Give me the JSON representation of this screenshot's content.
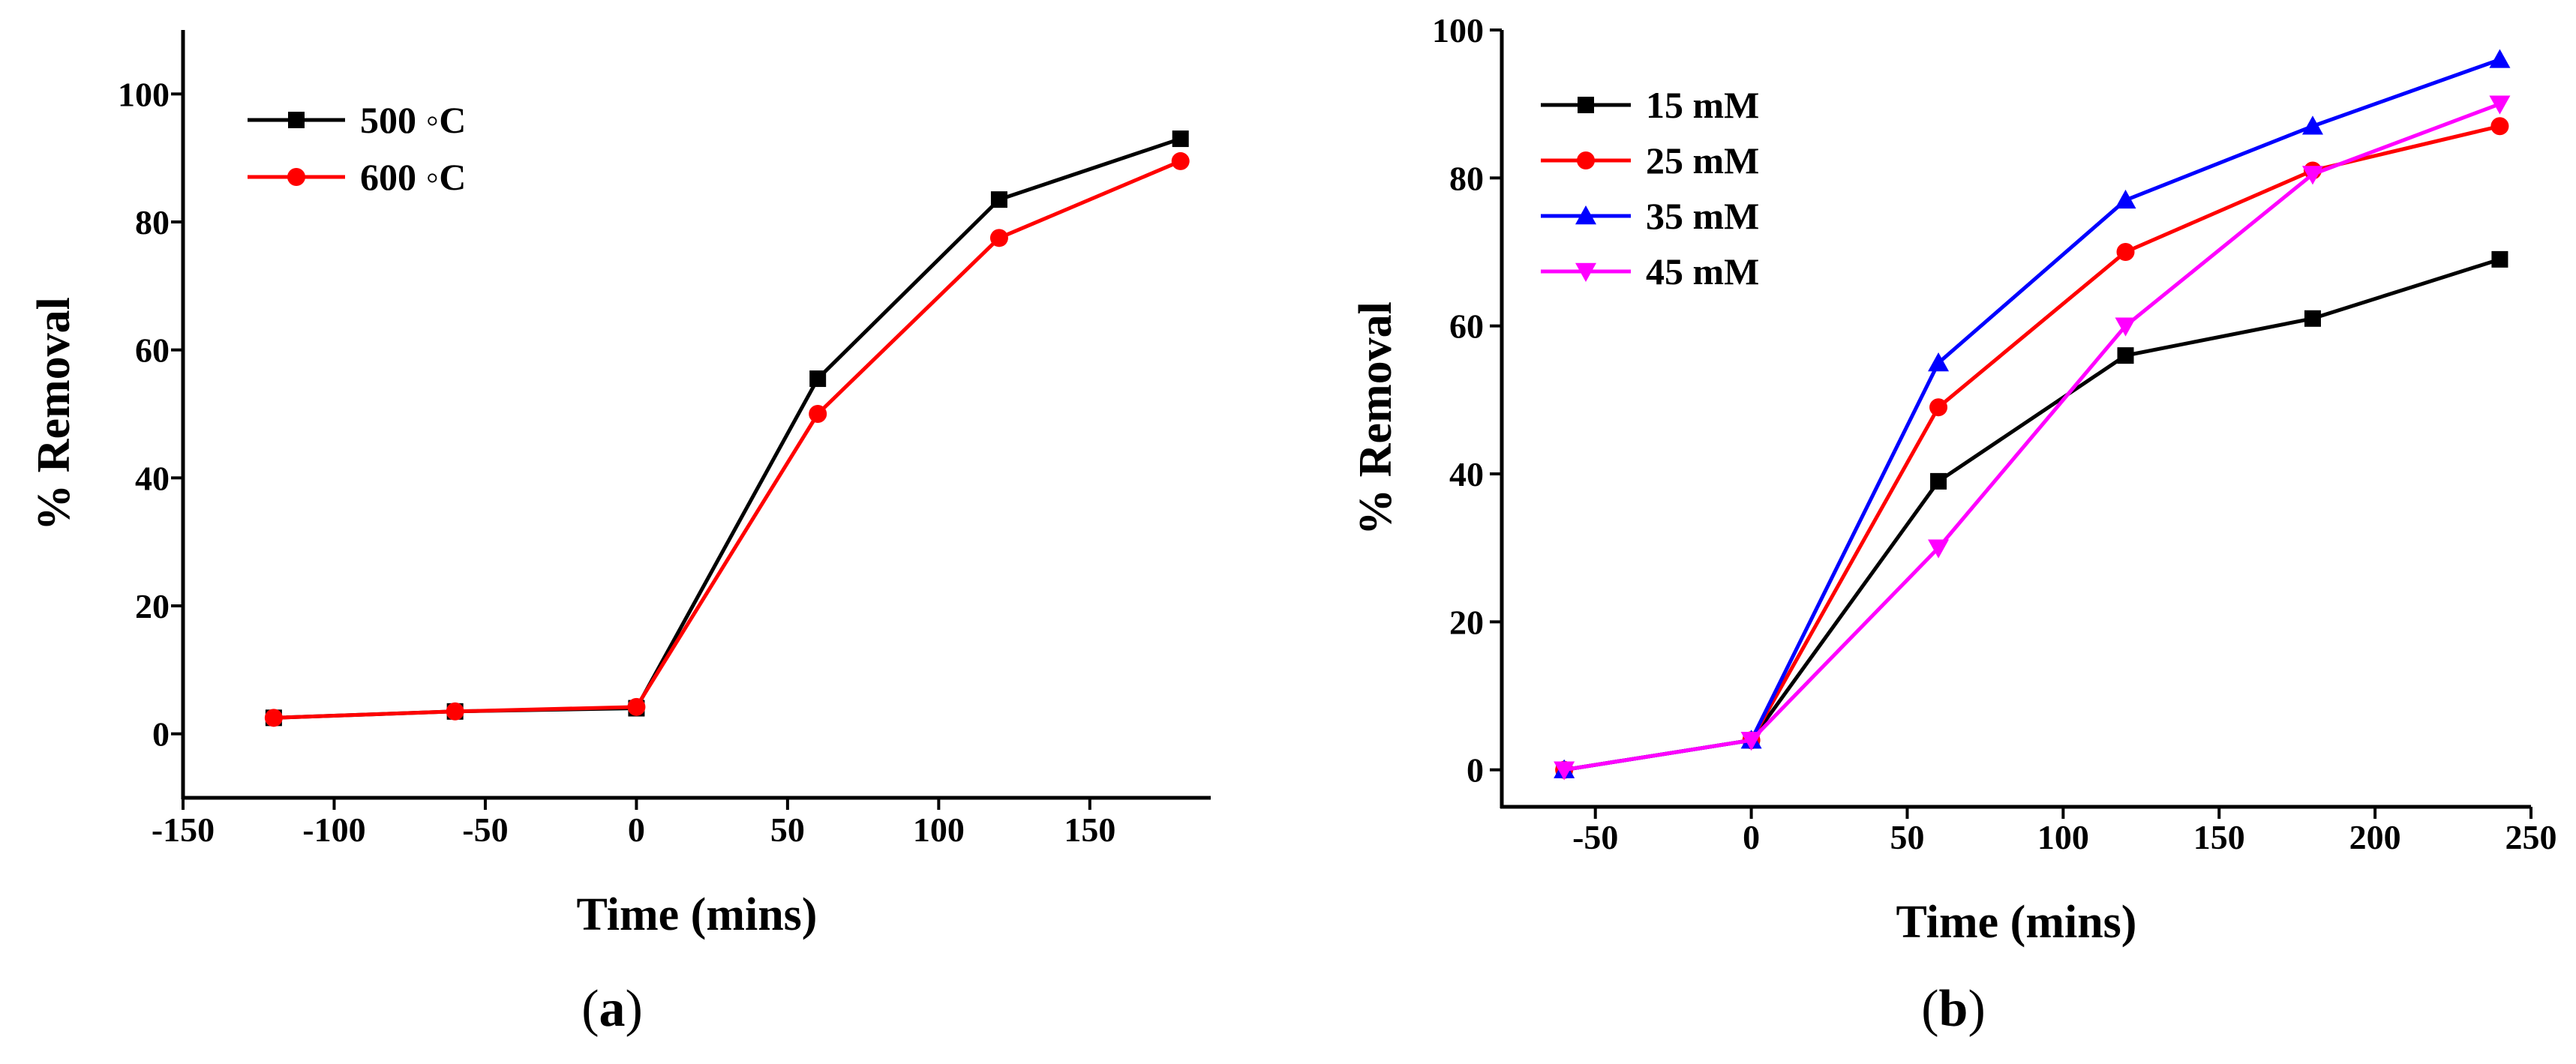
{
  "figure": {
    "panels": [
      {
        "label_open": "(",
        "label_letter": "a",
        "label_close": ")"
      },
      {
        "label_open": "(",
        "label_letter": "b",
        "label_close": ")"
      }
    ]
  },
  "chart_data": [
    {
      "type": "line",
      "panel": "a",
      "title": "",
      "xlabel": "Time (mins)",
      "ylabel": "% Removal",
      "xlim": [
        -150,
        190
      ],
      "ylim": [
        -10,
        110
      ],
      "xticks": [
        -150,
        -100,
        -50,
        0,
        50,
        100,
        150
      ],
      "yticks": [
        0,
        20,
        40,
        60,
        80,
        100
      ],
      "legend_position": "top-left",
      "series": [
        {
          "name": "500 ◦C",
          "color": "#000000",
          "marker": "square",
          "x": [
            -120,
            -60,
            0,
            60,
            120,
            180
          ],
          "y": [
            2.5,
            3.5,
            4.0,
            55.5,
            83.5,
            93.0
          ]
        },
        {
          "name": "600 ◦C",
          "color": "#ff0000",
          "marker": "circle",
          "x": [
            -120,
            -60,
            0,
            60,
            120,
            180
          ],
          "y": [
            2.5,
            3.5,
            4.2,
            50.0,
            77.5,
            89.5
          ]
        }
      ]
    },
    {
      "type": "line",
      "panel": "b",
      "title": "",
      "xlabel": "Time (mins)",
      "ylabel": "% Removal",
      "xlim": [
        -80,
        250
      ],
      "ylim": [
        -5,
        100
      ],
      "xticks": [
        -50,
        0,
        50,
        100,
        150,
        200,
        250
      ],
      "yticks": [
        0,
        20,
        40,
        60,
        80,
        100
      ],
      "legend_position": "top-left",
      "series": [
        {
          "name": "15 mM",
          "color": "#000000",
          "marker": "square",
          "x": [
            -60,
            0,
            60,
            120,
            180,
            240
          ],
          "y": [
            0,
            4,
            39,
            56,
            61,
            69
          ]
        },
        {
          "name": "25 mM",
          "color": "#ff0000",
          "marker": "circle",
          "x": [
            -60,
            0,
            60,
            120,
            180,
            240
          ],
          "y": [
            0,
            4,
            49,
            70,
            81,
            87
          ]
        },
        {
          "name": "35 mM",
          "color": "#0000ff",
          "marker": "triangle-up",
          "x": [
            -60,
            0,
            60,
            120,
            180,
            240
          ],
          "y": [
            0,
            4,
            55,
            77,
            87,
            96
          ]
        },
        {
          "name": "45 mM",
          "color": "#ff00ff",
          "marker": "triangle-down",
          "x": [
            -60,
            0,
            60,
            120,
            180,
            240
          ],
          "y": [
            0,
            4,
            30,
            60,
            80.5,
            90
          ]
        }
      ]
    }
  ]
}
